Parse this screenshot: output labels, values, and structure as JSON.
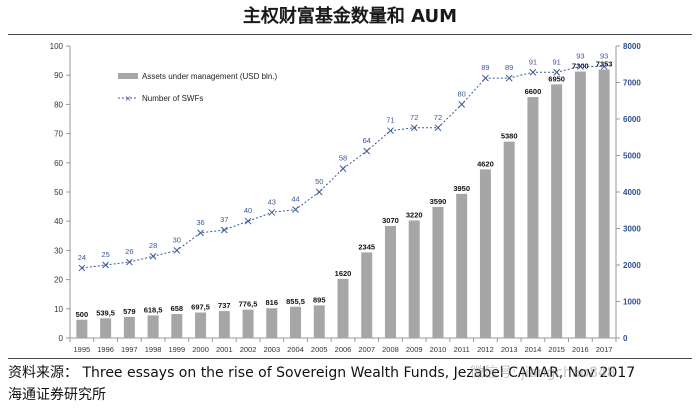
{
  "page_title": "主权财富基金数量和 AUM",
  "footer": {
    "source": "资料来源： Three essays on the rise of Sovereign Wealth Funds, Jezabel CAMAR, Nov 2017",
    "org": "海通证券研究所",
    "watermark": "微信号: jiangchao848"
  },
  "colors": {
    "bar": "#a6a6a6",
    "line": "#3a5a96",
    "axis_right": "#2f4f8f"
  },
  "chart_data": {
    "type": "bar",
    "title": "",
    "xlabel": "",
    "ylabel": "",
    "categories": [
      "1995",
      "1996",
      "1997",
      "1998",
      "1999",
      "2000",
      "2001",
      "2002",
      "2003",
      "2004",
      "2005",
      "2006",
      "2007",
      "2008",
      "2009",
      "2010",
      "2011",
      "2012",
      "2013",
      "2014",
      "2015",
      "2016",
      "2017"
    ],
    "series": [
      {
        "name": "Assets under management (USD bln.)",
        "type": "bar",
        "axis": "right",
        "values": [
          500,
          539.5,
          579,
          618.5,
          658,
          697.5,
          737,
          776.5,
          816,
          855.5,
          895,
          1620,
          2345,
          3070,
          3220,
          3590,
          3950,
          4620,
          5380,
          6600,
          6950,
          7300,
          7353
        ],
        "labels": [
          "500",
          "539,5",
          "579",
          "618,5",
          "658",
          "697,5",
          "737",
          "776,5",
          "816",
          "855,5",
          "895",
          "1620",
          "2345",
          "3070",
          "3220",
          "3590",
          "3950",
          "4620",
          "5380",
          "6600",
          "6950",
          "7300",
          "7353"
        ]
      },
      {
        "name": "Number of SWFs",
        "type": "line",
        "axis": "left",
        "values": [
          24,
          25,
          26,
          28,
          30,
          36,
          37,
          40,
          43,
          44,
          50,
          58,
          64,
          71,
          72,
          72,
          80,
          89,
          89,
          91,
          91,
          93,
          93
        ]
      }
    ],
    "left_axis": {
      "ylim": [
        0,
        100
      ],
      "ticks": [
        "0",
        "10",
        "20",
        "30",
        "40",
        "50",
        "60",
        "70",
        "80",
        "90",
        "100"
      ]
    },
    "right_axis": {
      "ylim": [
        0,
        8000
      ],
      "ticks": [
        "0",
        "1000",
        "2000",
        "3000",
        "4000",
        "5000",
        "6000",
        "7000",
        "8000"
      ]
    },
    "grid": false,
    "legend_position": "top-left"
  }
}
